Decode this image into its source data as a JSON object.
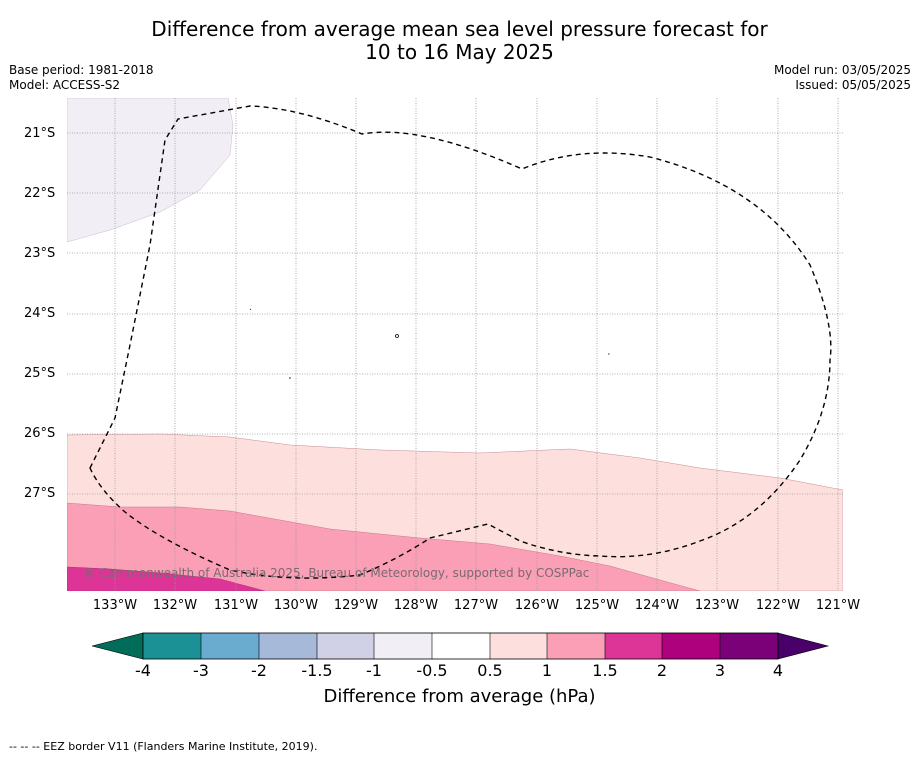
{
  "title_line1": "Difference from average mean sea level pressure forecast for",
  "title_line2": "10 to 16 May 2025",
  "base_period": "Base period: 1981-2018",
  "model": "Model: ACCESS-S2",
  "model_run": "Model run: 03/05/2025",
  "issued": "Issued: 05/05/2025",
  "copyright": "© Commonwealth of Australia 2025, Bureau of Meteorology, supported by COSPPac",
  "lat_labels": [
    "21°S",
    "22°S",
    "23°S",
    "24°S",
    "25°S",
    "26°S",
    "27°S"
  ],
  "lon_labels": [
    "133°W",
    "132°W",
    "131°W",
    "130°W",
    "129°W",
    "128°W",
    "127°W",
    "126°W",
    "125°W",
    "124°W",
    "123°W",
    "122°W",
    "121°W"
  ],
  "colorbar": {
    "title": "Difference from average (hPa)",
    "ticks": [
      "-4",
      "-3",
      "-2",
      "-1.5",
      "-1",
      "-0.5",
      "0.5",
      "1",
      "1.5",
      "2",
      "3",
      "4"
    ],
    "colors": [
      "#1b9195",
      "#6aabd0",
      "#a6b9d9",
      "#d0d1e6",
      "#f1eef6",
      "#ffffff",
      "#fde0dd",
      "#fa9fb5",
      "#dd3497",
      "#ae017e",
      "#7a0177"
    ],
    "under_color": "#016c59",
    "over_color": "#49006a"
  },
  "footnote": "--  --  -- EEZ border V11 (Flanders Marine Institute, 2019)."
}
